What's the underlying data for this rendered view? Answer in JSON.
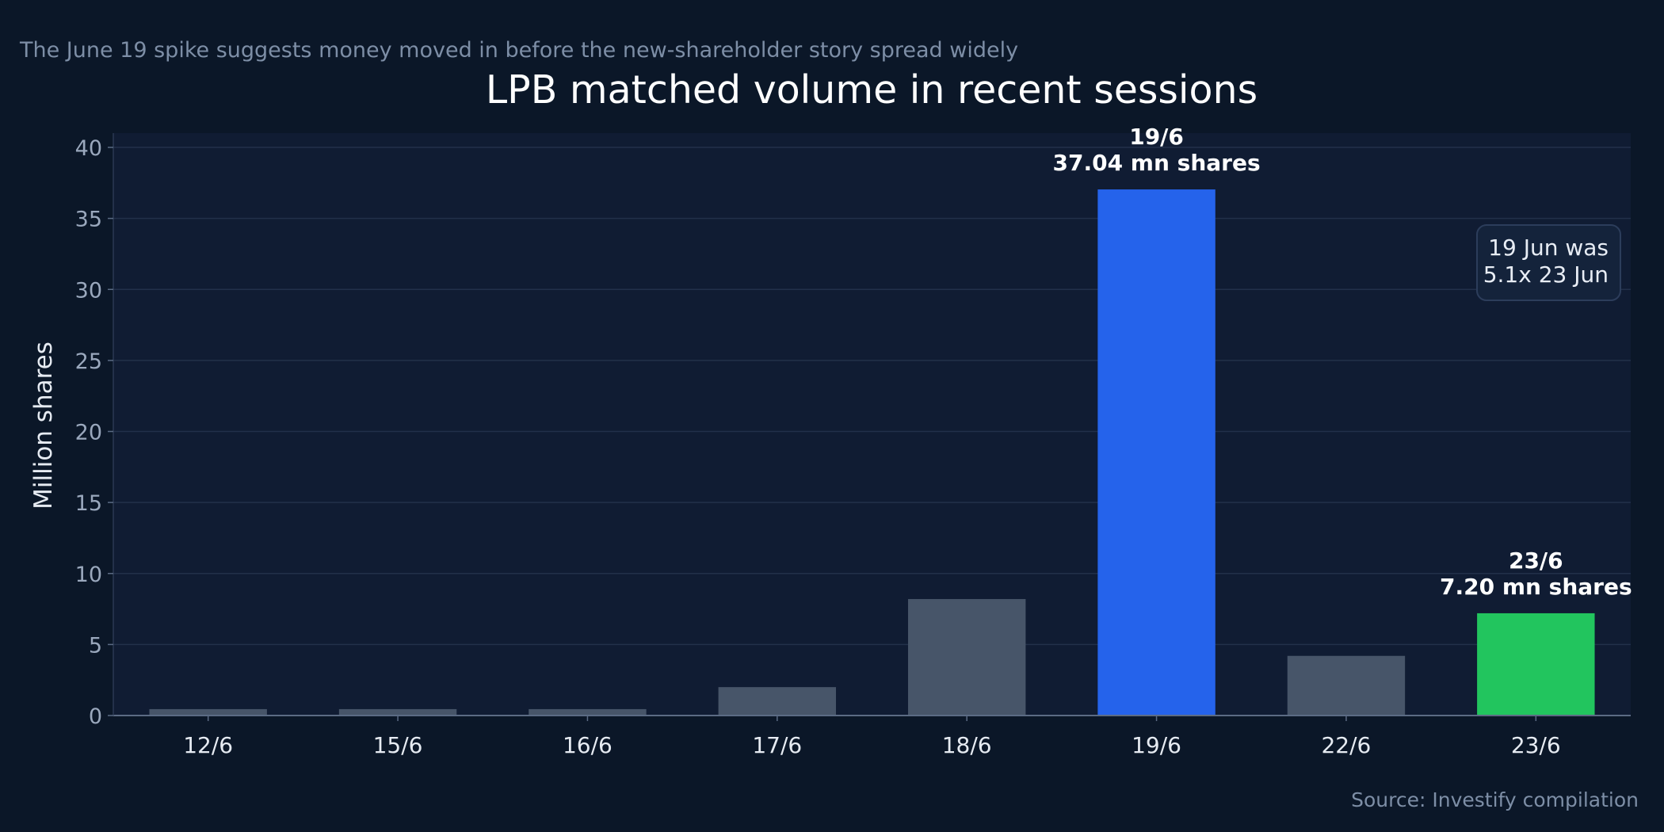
{
  "subtitle": "The June 19 spike suggests money moved in before the new-shareholder story spread widely",
  "source": "Source: Investify compilation",
  "annotation": [
    "19 Jun was",
    "5.1x 23 Jun"
  ],
  "colors": {
    "background": "#0b1728",
    "plot_background": "#101c33",
    "grid": "#22304a",
    "bar_default": "#475569",
    "bar_spike": "#2563eb",
    "bar_latest": "#22c55e"
  },
  "chart_data": {
    "type": "bar",
    "title": "LPB matched volume in recent sessions",
    "xlabel": "",
    "ylabel": "Million shares",
    "ylim": [
      0,
      40
    ],
    "yticks": [
      0,
      5,
      10,
      15,
      20,
      25,
      30,
      35,
      40
    ],
    "grid": true,
    "categories": [
      "12/6",
      "15/6",
      "16/6",
      "17/6",
      "18/6",
      "19/6",
      "22/6",
      "23/6"
    ],
    "values": [
      0.45,
      0.45,
      0.45,
      2.0,
      8.2,
      37.04,
      4.2,
      7.2
    ],
    "highlights": {
      "19/6": "spike",
      "23/6": "latest"
    },
    "data_labels": [
      {
        "category": "19/6",
        "lines": [
          "19/6",
          "37.04 mn shares"
        ]
      },
      {
        "category": "23/6",
        "lines": [
          "23/6",
          "7.20 mn shares"
        ]
      }
    ]
  }
}
